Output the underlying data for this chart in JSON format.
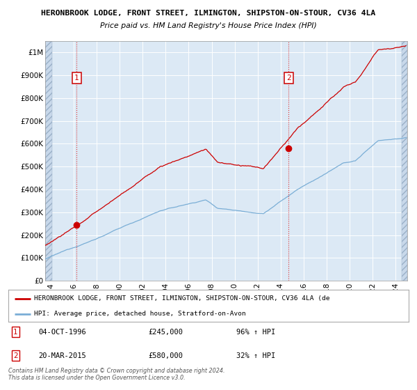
{
  "title1": "HERONBROOK LODGE, FRONT STREET, ILMINGTON, SHIPSTON-ON-STOUR, CV36 4LA",
  "title2": "Price paid vs. HM Land Registry's House Price Index (HPI)",
  "bg_color": "#dce9f5",
  "hatch_color": "#c8d8ea",
  "red_line_color": "#cc0000",
  "blue_line_color": "#7aaed6",
  "marker_color": "#cc0000",
  "ann1_x": 1996.75,
  "ann1_y": 245000,
  "ann2_x": 2015.21,
  "ann2_y": 580000,
  "legend_line1": "HERONBROOK LODGE, FRONT STREET, ILMINGTON, SHIPSTON-ON-STOUR, CV36 4LA (de",
  "legend_line2": "HPI: Average price, detached house, Stratford-on-Avon",
  "footer1": "Contains HM Land Registry data © Crown copyright and database right 2024.",
  "footer2": "This data is licensed under the Open Government Licence v3.0.",
  "xmin": 1994.0,
  "xmax": 2025.5,
  "ymin": 0,
  "ymax": 1050000,
  "yticks": [
    0,
    100000,
    200000,
    300000,
    400000,
    500000,
    600000,
    700000,
    800000,
    900000,
    1000000
  ],
  "ytick_labels": [
    "£0",
    "£100K",
    "£200K",
    "£300K",
    "£400K",
    "£500K",
    "£600K",
    "£700K",
    "£800K",
    "£900K",
    "£1M"
  ],
  "xtick_years": [
    1994,
    1996,
    1998,
    2000,
    2002,
    2004,
    2006,
    2008,
    2010,
    2012,
    2014,
    2016,
    2018,
    2020,
    2022,
    2024
  ]
}
